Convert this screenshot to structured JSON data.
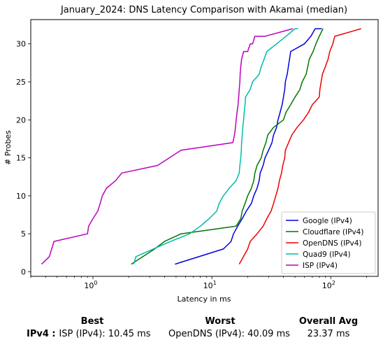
{
  "chart_data": {
    "type": "line",
    "title": "January_2024: DNS Latency Comparison with Akamai (median)",
    "xlabel": "Latency in ms",
    "ylabel": "# Probes",
    "xscale": "log",
    "xlim": [
      0.3,
      250
    ],
    "ylim": [
      -0.6,
      33.2
    ],
    "x_ticks": [
      {
        "value": 1,
        "base": "10",
        "exp": "0"
      },
      {
        "value": 10,
        "base": "10",
        "exp": "1"
      },
      {
        "value": 100,
        "base": "10",
        "exp": "2"
      }
    ],
    "y_ticks": [
      0,
      5,
      10,
      15,
      20,
      25,
      30
    ],
    "legend_position": "bottom-right",
    "series": [
      {
        "name": "Google (IPv4)",
        "color": "#0000dd",
        "x": [
          4.9,
          12.5,
          14.5,
          15.2,
          16.5,
          18.0,
          19.5,
          21.5,
          22.5,
          24.0,
          25.0,
          25.5,
          27.0,
          28.0,
          30.0,
          32.0,
          33.0,
          35.0,
          36.0,
          37.5,
          39.0,
          40.0,
          41.0,
          41.5,
          43.0,
          44.0,
          45.0,
          46.0,
          60.0,
          68.0,
          74.0,
          80.0,
          84.0
        ],
        "y": [
          1,
          3,
          4,
          5,
          6,
          7,
          8,
          9,
          10,
          11,
          12,
          13,
          14,
          15,
          16,
          17,
          18,
          19,
          20,
          21,
          22,
          23,
          24,
          25,
          26,
          27,
          28,
          29,
          30,
          31,
          32,
          32,
          32
        ]
      },
      {
        "name": "Cloudflare (IPv4)",
        "color": "#007700",
        "x": [
          2.1,
          3.3,
          4.0,
          5.5,
          16.0,
          17.5,
          18.0,
          19.0,
          20.0,
          21.5,
          22.5,
          23.0,
          24.0,
          26.0,
          27.0,
          28.5,
          29.5,
          33.0,
          40.0,
          42.0,
          46.0,
          50.0,
          55.0,
          57.5,
          62.0,
          64.0,
          66.0,
          71.0,
          75.0,
          80.0,
          86.0
        ],
        "y": [
          1,
          3,
          4,
          5,
          6,
          7,
          8,
          9,
          10,
          11,
          12,
          13,
          14,
          15,
          16,
          17,
          18,
          19,
          20,
          21,
          22,
          23,
          24,
          25,
          26,
          27,
          28,
          29,
          30,
          31,
          32
        ]
      },
      {
        "name": "OpenDNS (IPv4)",
        "color": "#ee0000",
        "x": [
          17.0,
          20.0,
          21.0,
          24.0,
          27.0,
          29.0,
          31.5,
          33.0,
          34.5,
          36.0,
          37.0,
          38.5,
          39.5,
          41.0,
          41.5,
          47.0,
          52.0,
          59.0,
          65.0,
          70.0,
          80.0,
          81.0,
          83.0,
          85.0,
          90.0,
          95.0,
          98.0,
          104.0,
          108.0,
          180.0
        ],
        "y": [
          1,
          3,
          4,
          5,
          6,
          7,
          8,
          9,
          10,
          11,
          12,
          13,
          14,
          15,
          16,
          18,
          19,
          20,
          21,
          22,
          23,
          24,
          25,
          26,
          27,
          28,
          29,
          30,
          31,
          32
        ]
      },
      {
        "name": "Quad9 (IPv4)",
        "color": "#00bbaa",
        "x": [
          2.2,
          2.3,
          4.5,
          6.5,
          8.0,
          9.5,
          11.0,
          11.5,
          12.5,
          14.0,
          16.0,
          17.0,
          17.2,
          17.5,
          17.7,
          17.8,
          18.0,
          18.2,
          18.5,
          18.7,
          19.0,
          19.2,
          21.0,
          22.0,
          25.0,
          26.0,
          27.5,
          29.0,
          35.0,
          42.0,
          50.0,
          53.0
        ],
        "y": [
          1,
          2,
          4,
          5,
          6,
          7,
          8,
          9,
          10,
          11,
          12,
          13,
          14,
          15,
          16,
          17,
          18,
          19,
          20,
          21,
          22,
          23,
          24,
          25,
          26,
          27,
          28,
          29,
          30,
          31,
          32,
          32
        ]
      },
      {
        "name": "ISP (IPv4)",
        "color": "#bb00bb",
        "x": [
          0.37,
          0.43,
          0.47,
          0.9,
          0.92,
          1.0,
          1.1,
          1.15,
          1.2,
          1.3,
          1.55,
          1.75,
          3.5,
          5.5,
          15.0,
          15.5,
          15.8,
          16.0,
          16.3,
          16.6,
          16.8,
          17.0,
          17.2,
          17.3,
          17.5,
          17.8,
          18.5,
          20.0,
          21.0,
          22.0,
          23.0,
          24.5,
          28.0,
          48.0
        ],
        "y": [
          1,
          2,
          4,
          5,
          6,
          7,
          8,
          9,
          10,
          11,
          12,
          13,
          14,
          16,
          17,
          18,
          19,
          20,
          21,
          22,
          23,
          24,
          25,
          26,
          27,
          28,
          29,
          29,
          30,
          30,
          31,
          31,
          31,
          32
        ]
      }
    ]
  },
  "summary": {
    "headers": {
      "best": "Best",
      "worst": "Worst",
      "avg": "Overall Avg"
    },
    "row_label": "IPv4 :",
    "best": "ISP (IPv4): 10.45 ms",
    "worst": "OpenDNS (IPv4): 40.09 ms",
    "avg": "23.37 ms"
  }
}
